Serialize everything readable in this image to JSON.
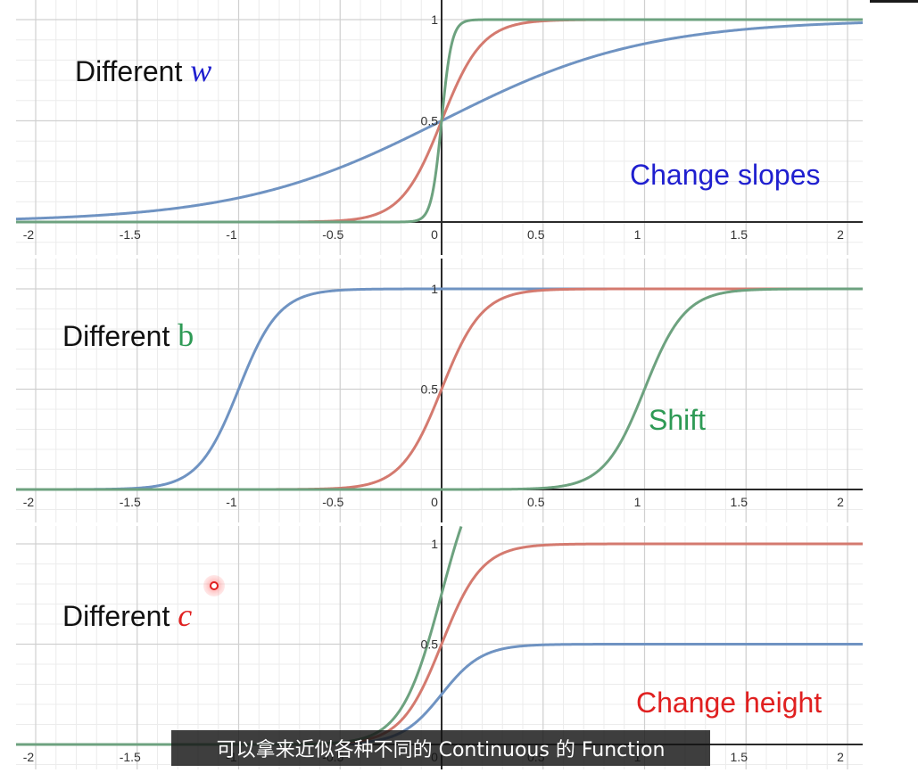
{
  "window": {
    "top_bar": ""
  },
  "subtitle": "可以拿来近似各种不同的 Continuous 的 Function",
  "colors": {
    "blue": "#6f93c2",
    "red": "#d47a6f",
    "green": "#6da27f",
    "grid_major": "#d0d0d0",
    "grid_minor": "#ececec",
    "axis": "#2a2a2a"
  },
  "panels": [
    {
      "id": "w",
      "label_text": "Different ",
      "label_var": "w",
      "label_var_color": "#1f1fcf",
      "annotation": "Change slopes",
      "annotation_color": "#1f1fcf"
    },
    {
      "id": "b",
      "label_text": "Different ",
      "label_var": "b",
      "label_var_color": "#2e9a55",
      "annotation": "Shift",
      "annotation_color": "#2e9a55"
    },
    {
      "id": "c",
      "label_text": "Different ",
      "label_var": "c",
      "label_var_color": "#e02020",
      "annotation": "Change height",
      "annotation_color": "#e02020"
    }
  ],
  "chart_data": [
    {
      "type": "line",
      "title": "",
      "xlabel": "",
      "ylabel": "",
      "xlim": [
        -2.05,
        2.05
      ],
      "ylim": [
        0,
        1
      ],
      "x_ticks": [
        "-2",
        "-1.5",
        "-1",
        "-0.5",
        "0",
        "0.5",
        "1",
        "1.5",
        "2"
      ],
      "y_ticks": [
        "0.5",
        "1"
      ],
      "grid": true,
      "function": "y = c / (1 + exp(-(w*x + b)))",
      "series": [
        {
          "color": "blue",
          "w": 2,
          "b": 0,
          "c": 1
        },
        {
          "color": "red",
          "w": 10,
          "b": 0,
          "c": 1
        },
        {
          "color": "green",
          "w": 40,
          "b": 0,
          "c": 1
        }
      ]
    },
    {
      "type": "line",
      "title": "",
      "xlabel": "",
      "ylabel": "",
      "xlim": [
        -2.05,
        2.05
      ],
      "ylim": [
        0,
        1
      ],
      "x_ticks": [
        "-2",
        "-1.5",
        "-1",
        "-0.5",
        "0",
        "0.5",
        "1",
        "1.5",
        "2"
      ],
      "y_ticks": [
        "0.5",
        "1"
      ],
      "grid": true,
      "function": "y = c / (1 + exp(-(w*x + b)))",
      "series": [
        {
          "color": "blue",
          "w": 10,
          "b": 10,
          "c": 1
        },
        {
          "color": "red",
          "w": 10,
          "b": 0,
          "c": 1
        },
        {
          "color": "green",
          "w": 10,
          "b": -10,
          "c": 1
        }
      ]
    },
    {
      "type": "line",
      "title": "",
      "xlabel": "",
      "ylabel": "",
      "xlim": [
        -2.05,
        2.05
      ],
      "ylim": [
        0,
        1
      ],
      "x_ticks": [
        "-2",
        "-1.5",
        "-1",
        "-0.5",
        "0",
        "0.5",
        "1",
        "1.5",
        "2"
      ],
      "y_ticks": [
        "0.5",
        "1"
      ],
      "grid": true,
      "function": "y = c / (1 + exp(-(w*x + b)))",
      "series": [
        {
          "color": "blue",
          "w": 10,
          "b": 0,
          "c": 0.5
        },
        {
          "color": "red",
          "w": 10,
          "b": 0,
          "c": 1
        },
        {
          "color": "green",
          "w": 10,
          "b": 0,
          "c": 1.5
        }
      ]
    }
  ]
}
